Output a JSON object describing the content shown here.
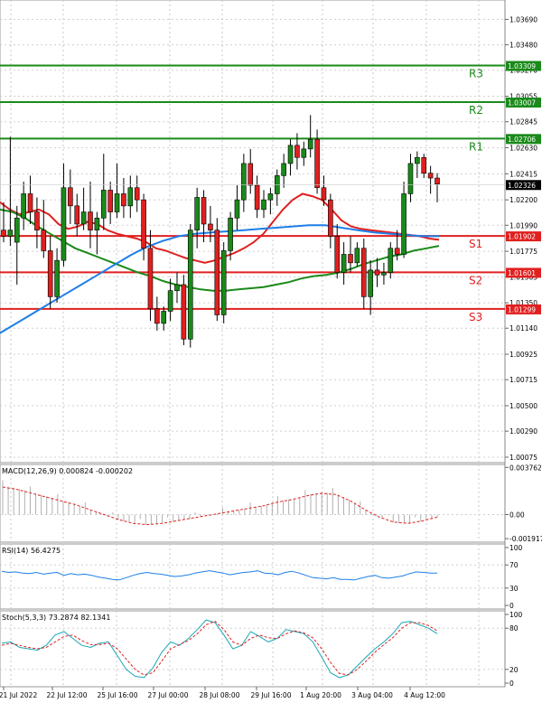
{
  "chart_data": {
    "type": "candlestick",
    "grid": true,
    "x_labels": [
      "21 Jul 2022",
      "22 Jul 12:00",
      "25 Jul 16:00",
      "27 Jul 00:00",
      "28 Jul 08:00",
      "29 Jul 16:00",
      "1 Aug 20:00",
      "3 Aug 04:00",
      "4 Aug 12:00"
    ],
    "price_axis": {
      "ticks": [
        "1.03690",
        "1.03480",
        "1.03270",
        "1.03055",
        "1.02845",
        "1.02630",
        "1.02415",
        "1.02200",
        "1.01990",
        "1.01775",
        "1.01565",
        "1.01350",
        "1.01140",
        "1.00925",
        "1.00715",
        "1.00500",
        "1.00290",
        "1.00075"
      ],
      "range": [
        1.0003,
        1.0385
      ],
      "current_price": "1.02326",
      "current_value": 1.02326
    },
    "levels": [
      {
        "name": "R3",
        "value": 1.03309,
        "label": "1.03309",
        "color": "#1a8a1a"
      },
      {
        "name": "R2",
        "value": 1.03007,
        "label": "1.03007",
        "color": "#1a8a1a"
      },
      {
        "name": "R1",
        "value": 1.02706,
        "label": "1.02706",
        "color": "#1a8a1a"
      },
      {
        "name": "S1",
        "value": 1.01902,
        "label": "1.01902",
        "color": "#e02020"
      },
      {
        "name": "S2",
        "value": 1.01601,
        "label": "1.01601",
        "color": "#e02020"
      },
      {
        "name": "S3",
        "value": 1.01299,
        "label": "1.01299",
        "color": "#e02020"
      }
    ],
    "candles": [
      [
        1.0195,
        1.0218,
        1.0185,
        1.019
      ],
      [
        1.019,
        1.0272,
        1.0182,
        1.0195
      ],
      [
        1.0185,
        1.0215,
        1.015,
        1.0205
      ],
      [
        1.0205,
        1.0235,
        1.0195,
        1.0225
      ],
      [
        1.0225,
        1.024,
        1.02,
        1.021
      ],
      [
        1.021,
        1.0222,
        1.018,
        1.0195
      ],
      [
        1.0195,
        1.022,
        1.0172,
        1.0178
      ],
      [
        1.0178,
        1.019,
        1.013,
        1.014
      ],
      [
        1.014,
        1.018,
        1.0135,
        1.017
      ],
      [
        1.017,
        1.025,
        1.0165,
        1.023
      ],
      [
        1.023,
        1.0245,
        1.02,
        1.0215
      ],
      [
        1.0215,
        1.0225,
        1.019,
        1.02
      ],
      [
        1.02,
        1.023,
        1.0195,
        1.021
      ],
      [
        1.021,
        1.0235,
        1.018,
        1.0195
      ],
      [
        1.0195,
        1.021,
        1.0175,
        1.0205
      ],
      [
        1.0205,
        1.0258,
        1.0195,
        1.0228
      ],
      [
        1.0228,
        1.0235,
        1.02,
        1.021
      ],
      [
        1.021,
        1.025,
        1.0205,
        1.0225
      ],
      [
        1.0225,
        1.0238,
        1.0205,
        1.0215
      ],
      [
        1.0215,
        1.024,
        1.0205,
        1.023
      ],
      [
        1.023,
        1.024,
        1.021,
        1.022
      ],
      [
        1.022,
        1.0225,
        1.017,
        1.018
      ],
      [
        1.018,
        1.0195,
        1.012,
        1.013
      ],
      [
        1.013,
        1.014,
        1.0112,
        1.0118
      ],
      [
        1.0118,
        1.0132,
        1.0112,
        1.0128
      ],
      [
        1.0128,
        1.0155,
        1.012,
        1.0145
      ],
      [
        1.0145,
        1.016,
        1.0135,
        1.015
      ],
      [
        1.015,
        1.0158,
        1.01,
        1.0105
      ],
      [
        1.0105,
        1.02,
        1.0098,
        1.0195
      ],
      [
        1.0195,
        1.023,
        1.018,
        1.0222
      ],
      [
        1.0222,
        1.0228,
        1.0185,
        1.02
      ],
      [
        1.02,
        1.0215,
        1.0185,
        1.0195
      ],
      [
        1.0195,
        1.0205,
        1.012,
        1.0125
      ],
      [
        1.0125,
        1.0185,
        1.0118,
        1.0178
      ],
      [
        1.0178,
        1.021,
        1.017,
        1.0205
      ],
      [
        1.0205,
        1.0232,
        1.0195,
        1.022
      ],
      [
        1.022,
        1.0258,
        1.021,
        1.025
      ],
      [
        1.025,
        1.0262,
        1.0225,
        1.0232
      ],
      [
        1.0232,
        1.024,
        1.0205,
        1.0212
      ],
      [
        1.0212,
        1.0228,
        1.0205,
        1.022
      ],
      [
        1.022,
        1.023,
        1.0208,
        1.0225
      ],
      [
        1.0225,
        1.0245,
        1.0215,
        1.024
      ],
      [
        1.024,
        1.0258,
        1.023,
        1.025
      ],
      [
        1.025,
        1.027,
        1.024,
        1.0265
      ],
      [
        1.0265,
        1.0275,
        1.0245,
        1.0255
      ],
      [
        1.0255,
        1.0268,
        1.0248,
        1.0262
      ],
      [
        1.0262,
        1.029,
        1.0255,
        1.027
      ],
      [
        1.027,
        1.0278,
        1.0225,
        1.023
      ],
      [
        1.023,
        1.024,
        1.0215,
        1.022
      ],
      [
        1.022,
        1.0225,
        1.018,
        1.019
      ],
      [
        1.019,
        1.02,
        1.0155,
        1.016
      ],
      [
        1.016,
        1.0185,
        1.015,
        1.0175
      ],
      [
        1.0175,
        1.019,
        1.016,
        1.0168
      ],
      [
        1.0168,
        1.0185,
        1.0165,
        1.018
      ],
      [
        1.018,
        1.0188,
        1.013,
        1.014
      ],
      [
        1.014,
        1.017,
        1.0125,
        1.0162
      ],
      [
        1.0162,
        1.0172,
        1.0148,
        1.0158
      ],
      [
        1.0158,
        1.0168,
        1.015,
        1.016
      ],
      [
        1.016,
        1.0185,
        1.0155,
        1.018
      ],
      [
        1.018,
        1.0195,
        1.017,
        1.0175
      ],
      [
        1.0175,
        1.0235,
        1.0172,
        1.0225
      ],
      [
        1.0225,
        1.0258,
        1.0218,
        1.025
      ],
      [
        1.025,
        1.026,
        1.0238,
        1.0255
      ],
      [
        1.0255,
        1.0258,
        1.0238,
        1.0242
      ],
      [
        1.0242,
        1.0248,
        1.0225,
        1.0238
      ],
      [
        1.0238,
        1.0242,
        1.0218,
        1.0233
      ]
    ],
    "series": [
      {
        "name": "",
        "color": "#e02020",
        "values": [
          1.0218,
          1.0212,
          1.0208,
          1.021,
          1.0212,
          1.0208,
          1.02,
          1.0196,
          1.0198,
          1.0202,
          1.02,
          1.0195,
          1.0192,
          1.019,
          1.0188,
          1.0185,
          1.018,
          1.0178,
          1.0175,
          1.0172,
          1.017,
          1.0168,
          1.017,
          1.0173,
          1.0176,
          1.018,
          1.0185,
          1.0192,
          1.0202,
          1.0212,
          1.022,
          1.0225,
          1.0223,
          1.022,
          1.0212,
          1.0203,
          1.0198,
          1.0196,
          1.0195,
          1.0194,
          1.0193,
          1.0192,
          1.0191,
          1.019,
          1.0188,
          1.0187
        ]
      },
      {
        "name": "",
        "color": "#1a8a1a",
        "values": [
          1.0212,
          1.021,
          1.0205,
          1.0198,
          1.0192,
          1.0186,
          1.018,
          1.0176,
          1.0172,
          1.0168,
          1.0164,
          1.016,
          1.0157,
          1.0153,
          1.015,
          1.0148,
          1.0146,
          1.0145,
          1.0145,
          1.0146,
          1.0147,
          1.0148,
          1.015,
          1.0152,
          1.0155,
          1.0157,
          1.0158,
          1.016,
          1.0163,
          1.0167,
          1.017,
          1.0173,
          1.0175,
          1.0178,
          1.018,
          1.0182
        ]
      },
      {
        "name": "",
        "color": "#1e7ee8",
        "values": [
          1.011,
          1.0118,
          1.0126,
          1.0134,
          1.0142,
          1.015,
          1.0158,
          1.0166,
          1.0174,
          1.0181,
          1.0186,
          1.019,
          1.0192,
          1.0193,
          1.0194,
          1.0195,
          1.0196,
          1.0197,
          1.0198,
          1.0199,
          1.0199,
          1.0197,
          1.0195,
          1.0193,
          1.0192,
          1.0191,
          1.019,
          1.019
        ]
      }
    ],
    "macd": {
      "label": "MACD(12,26,9) 0.000824 -0.000202",
      "axis_ticks": [
        "0.003762",
        "0.00",
        "-0.001917"
      ],
      "range": [
        -0.0022,
        0.004
      ],
      "signal": [
        0.0022,
        0.002,
        0.0017,
        0.0014,
        0.0011,
        0.0008,
        0.0004,
        0.0,
        -0.0004,
        -0.0007,
        -0.0008,
        -0.0007,
        -0.0005,
        -0.0003,
        -0.0001,
        0.0001,
        0.0003,
        0.0005,
        0.0007,
        0.001,
        0.0012,
        0.0015,
        0.0017,
        0.0016,
        0.0011,
        0.0004,
        -0.0002,
        -0.0006,
        -0.0007,
        -0.0005,
        -0.0002
      ]
    },
    "rsi": {
      "label": "RSI(14) 56.4275",
      "axis_ticks": [
        "100",
        "70",
        "30",
        "0"
      ],
      "values": [
        59,
        57,
        58,
        56,
        55,
        57,
        54,
        56,
        57,
        52,
        55,
        53,
        54,
        52,
        49,
        47,
        45,
        44,
        48,
        52,
        55,
        57,
        55,
        54,
        52,
        50,
        51,
        53,
        56,
        58,
        60,
        58,
        56,
        53,
        55,
        57,
        58,
        60,
        56,
        55,
        53,
        57,
        59,
        56,
        52,
        48,
        47,
        46,
        48,
        45,
        45,
        44,
        47,
        50,
        52,
        48,
        47,
        49,
        51,
        55,
        58,
        57,
        56,
        56
      ]
    },
    "stoch": {
      "label": "Stoch(5,3,3) 73.2874 82.1341",
      "axis_ticks": [
        "100",
        "80",
        "20",
        "0"
      ],
      "k": [
        58,
        60,
        52,
        50,
        48,
        55,
        70,
        75,
        65,
        55,
        52,
        58,
        60,
        40,
        20,
        10,
        8,
        22,
        45,
        60,
        55,
        65,
        78,
        92,
        88,
        70,
        50,
        55,
        75,
        68,
        60,
        65,
        78,
        75,
        72,
        60,
        38,
        15,
        8,
        12,
        25,
        38,
        50,
        60,
        72,
        88,
        90,
        85,
        80,
        72
      ],
      "d": [
        55,
        58,
        55,
        52,
        50,
        52,
        60,
        68,
        70,
        62,
        56,
        56,
        58,
        50,
        35,
        20,
        12,
        15,
        32,
        50,
        56,
        62,
        72,
        85,
        90,
        78,
        60,
        55,
        65,
        70,
        66,
        65,
        72,
        76,
        73,
        66,
        50,
        30,
        14,
        12,
        20,
        32,
        45,
        56,
        66,
        80,
        88,
        88,
        84,
        76
      ]
    }
  }
}
